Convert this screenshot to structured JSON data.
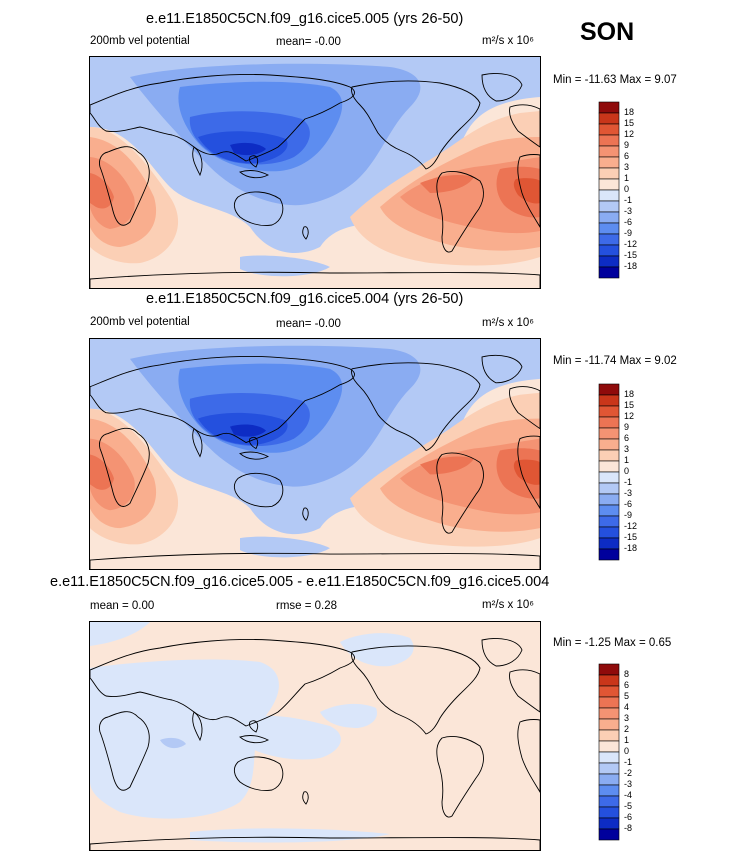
{
  "season": "SON",
  "units_label": "m²/s x 10⁶",
  "colors": {
    "n18": "#00009c",
    "n15": "#0d2cc4",
    "n12": "#2450de",
    "n9": "#3d6ae8",
    "n6": "#5d8df0",
    "n3": "#8aacf2",
    "n1": "#b3c9f5",
    "z": "#dae6fa",
    "p0": "#fbe6d8",
    "p1": "#fbcfb5",
    "p3": "#f9ae8e",
    "p6": "#f49373",
    "p9": "#ec7454",
    "p12": "#e05634",
    "p15": "#c9361a",
    "p18": "#8f0b0b"
  },
  "panels": [
    {
      "title": "e.e11.E1850C5CN.f09_g16.cice5.005 (yrs 26-50)",
      "left_label": "200mb vel potential",
      "mid_label": "mean=  -0.00",
      "minmax": "Min = -11.63 Max =   9.07"
    },
    {
      "title": "e.e11.E1850C5CN.f09_g16.cice5.004 (yrs 26-50)",
      "left_label": "200mb vel potential",
      "mid_label": "mean=  -0.00",
      "minmax": "Min = -11.74 Max =   9.02"
    },
    {
      "title": "e.e11.E1850C5CN.f09_g16.cice5.005 - e.e11.E1850C5CN.f09_g16.cice5.004",
      "left_label": "mean =   0.00",
      "mid_label": "rmse =   0.28",
      "minmax": "Min =  -1.25 Max =   0.65"
    }
  ],
  "chart_data": [
    {
      "type": "heatmap",
      "title": "e.e11.E1850C5CN.f09_g16.cice5.005 (yrs 26-50)",
      "variable": "200mb vel potential",
      "mean": -0.0,
      "min": -11.63,
      "max": 9.07,
      "units": "m2/s x 10^6",
      "levels": [
        -18,
        -15,
        -12,
        -9,
        -6,
        -3,
        -1,
        0,
        1,
        3,
        6,
        9,
        12,
        15,
        18
      ],
      "colorbar_labels": [
        "18",
        "15",
        "12",
        "9",
        "6",
        "3",
        "1",
        "0",
        "-1",
        "-3",
        "-6",
        "-9",
        "-12",
        "-15",
        "-18"
      ]
    },
    {
      "type": "heatmap",
      "title": "e.e11.E1850C5CN.f09_g16.cice5.004 (yrs 26-50)",
      "variable": "200mb vel potential",
      "mean": -0.0,
      "min": -11.74,
      "max": 9.02,
      "units": "m2/s x 10^6",
      "levels": [
        -18,
        -15,
        -12,
        -9,
        -6,
        -3,
        -1,
        0,
        1,
        3,
        6,
        9,
        12,
        15,
        18
      ],
      "colorbar_labels": [
        "18",
        "15",
        "12",
        "9",
        "6",
        "3",
        "1",
        "0",
        "-1",
        "-3",
        "-6",
        "-9",
        "-12",
        "-15",
        "-18"
      ]
    },
    {
      "type": "heatmap",
      "title": "e.e11.E1850C5CN.f09_g16.cice5.005 - e.e11.E1850C5CN.f09_g16.cice5.004",
      "mean": 0.0,
      "rmse": 0.28,
      "min": -1.25,
      "max": 0.65,
      "units": "m2/s x 10^6",
      "levels": [
        -8,
        -6,
        -5,
        -4,
        -3,
        -2,
        -1,
        0,
        1,
        2,
        3,
        4,
        5,
        6,
        8
      ],
      "colorbar_labels": [
        "8",
        "6",
        "5",
        "4",
        "3",
        "2",
        "1",
        "0",
        "-1",
        "-2",
        "-3",
        "-4",
        "-5",
        "-6",
        "-8"
      ]
    }
  ]
}
